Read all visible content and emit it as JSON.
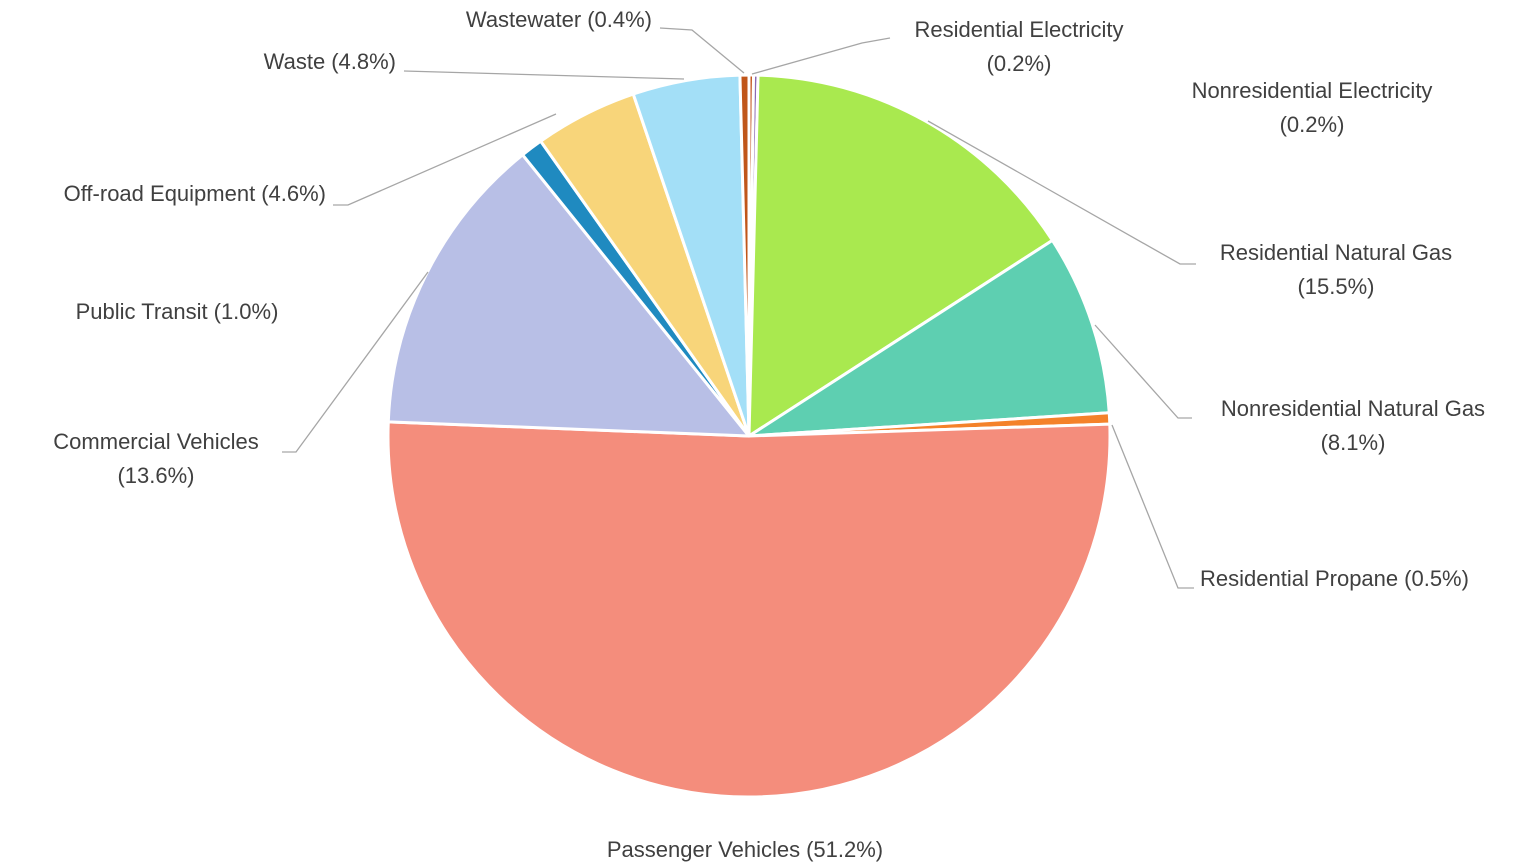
{
  "chart_data": {
    "type": "pie",
    "categories": [
      "Residential Electricity",
      "Nonresidential Electricity",
      "Residential Natural Gas",
      "Nonresidential Natural Gas",
      "Residential Propane",
      "Passenger Vehicles",
      "Commercial Vehicles",
      "Public Transit",
      "Off-road Equipment",
      "Waste",
      "Wastewater"
    ],
    "values": [
      0.2,
      0.2,
      15.5,
      8.1,
      0.5,
      51.2,
      13.6,
      1.0,
      4.6,
      4.8,
      0.4
    ],
    "value_labels": [
      "(0.2%)",
      "(0.2%)",
      "(15.5%)",
      "(8.1%)",
      "(0.5%)",
      "(51.2%)",
      "(13.6%)",
      "(1.0%)",
      "(4.6%)",
      "(4.8%)",
      "(0.4%)"
    ],
    "colors": [
      "#c4561c",
      "#8c6bb1",
      "#a9e94f",
      "#5ecfb1",
      "#f4822a",
      "#f48d7c",
      "#b8bfe6",
      "#1f8ac0",
      "#f8d57a",
      "#a3dff7",
      "#c0561a"
    ]
  }
}
